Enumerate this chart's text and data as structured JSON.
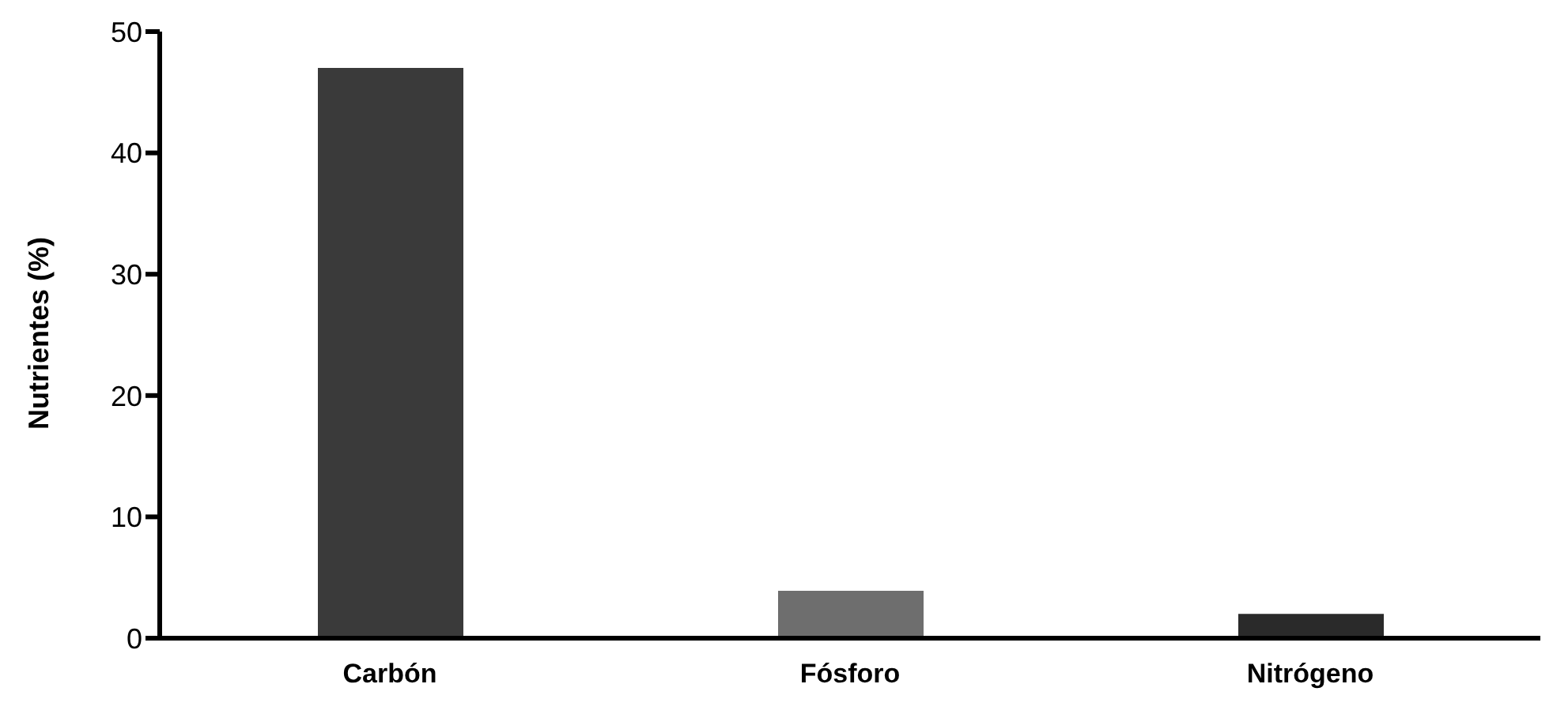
{
  "chart_data": {
    "type": "bar",
    "ylabel": "Nutrientes (%)",
    "categories": [
      "Carbón",
      "Fósforo",
      "Nitrógeno"
    ],
    "values": [
      47,
      3.9,
      2.0
    ],
    "colors": [
      "#3a3a3a",
      "#6e6e6e",
      "#2a2a2a"
    ],
    "ylim": [
      0,
      50
    ],
    "yticks": [
      0,
      10,
      20,
      30,
      40,
      50
    ],
    "grid": false,
    "legend": false
  }
}
